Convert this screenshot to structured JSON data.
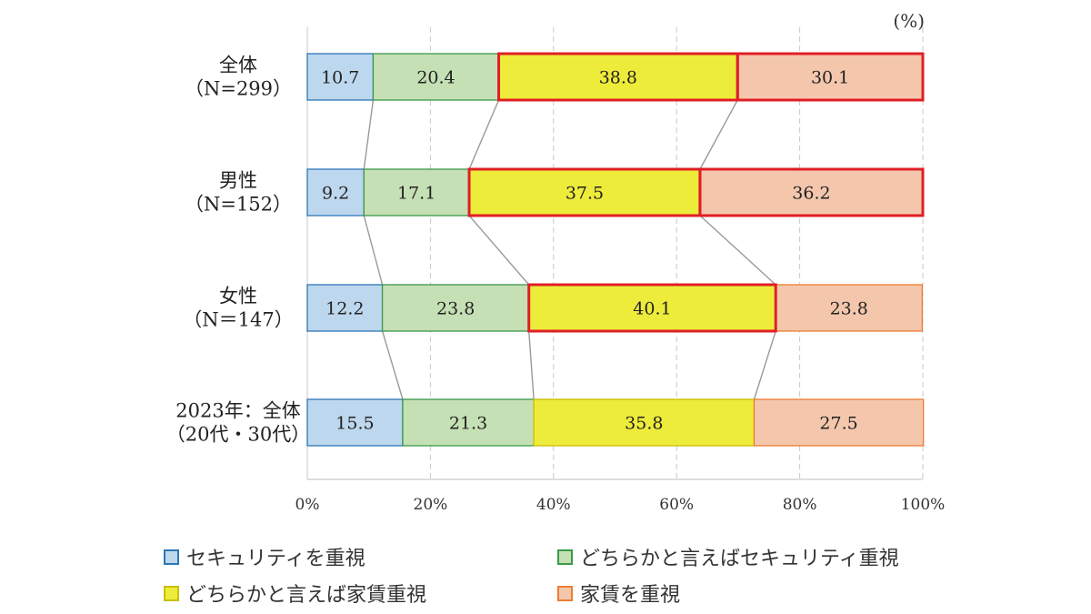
{
  "chart_data": {
    "type": "bar",
    "orientation": "horizontal",
    "stacked": true,
    "percent_stacked": true,
    "unit_label": "(%)",
    "xlim": [
      0,
      100
    ],
    "x_ticks": [
      "0%",
      "20%",
      "40%",
      "60%",
      "80%",
      "100%"
    ],
    "grid": true,
    "legend_position": "bottom",
    "categories": [
      {
        "line1": "全体",
        "line2": "（N=299）"
      },
      {
        "line1": "男性",
        "line2": "（N=152）"
      },
      {
        "line1": "女性",
        "line2": "（N＝147）"
      },
      {
        "line1": "2023年：全体",
        "line2": "（20代・30代）"
      }
    ],
    "series": [
      {
        "name": "セキュリティを重視",
        "color": "#bdd7ee",
        "border": "#2e75b6",
        "values": [
          10.7,
          9.2,
          12.2,
          15.5
        ]
      },
      {
        "name": "どちらかと言えばセキュリティ重視",
        "color": "#c5e0b4",
        "border": "#3a9a4a",
        "values": [
          20.4,
          17.1,
          23.8,
          21.3
        ]
      },
      {
        "name": "どちらかと言えば家賃重視",
        "color": "#eeec3a",
        "border": "#c8c000",
        "values": [
          38.8,
          37.5,
          40.1,
          35.8
        ]
      },
      {
        "name": "家賃を重視",
        "color": "#f4c7ad",
        "border": "#ed7d31",
        "values": [
          30.1,
          36.2,
          23.8,
          27.5
        ]
      }
    ],
    "highlight_color": "#e01f26",
    "highlight_segments": [
      [
        2,
        3
      ],
      [
        2,
        3
      ],
      [
        2
      ]
    ]
  }
}
